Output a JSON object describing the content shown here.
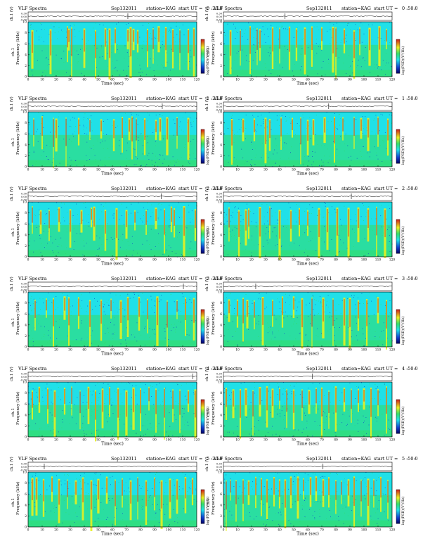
{
  "header_texts": {
    "title": "VLF Spectra",
    "date": "Sep132011",
    "station": "station=KAG",
    "start_prefix": "start  UT ="
  },
  "axis_labels": {
    "ch_label": "ch.1 (V)",
    "ylabel": "ch.1\nFrequency  (kHz)",
    "xlabel": "Time  (sec)",
    "colorbar_label": "log(PSD)(V²/Hz)"
  },
  "colors": {
    "background_cyan": "#20e0e8",
    "background_green": "#33dd66",
    "mid_yellow": "#e8f020",
    "hot_red": "#d01818",
    "low_blue": "#1040d0"
  },
  "chart_data": [
    {
      "type": "heatmap",
      "panel": "0:20",
      "start_ut": "0 :20:0",
      "x": [
        0,
        120
      ],
      "xticks": [
        0,
        10,
        20,
        30,
        40,
        50,
        60,
        70,
        80,
        90,
        100,
        110,
        120
      ],
      "ylim_khz": [
        0,
        10
      ],
      "yticks": [
        0,
        2,
        4,
        6,
        8,
        10
      ],
      "ch_yticks": [
        "0.30",
        "0.00",
        "-0.30"
      ],
      "bursts_sec": [
        3,
        16,
        28,
        29,
        31,
        40,
        48,
        55,
        58,
        62,
        71,
        73,
        75,
        78,
        85,
        89,
        93,
        98,
        103,
        108,
        114,
        118
      ]
    },
    {
      "type": "heatmap",
      "panel": "0:50",
      "start_ut": "0 :50:0",
      "x": [
        0,
        120
      ],
      "xticks": [
        0,
        10,
        20,
        30,
        40,
        50,
        60,
        70,
        80,
        90,
        100,
        110,
        120
      ],
      "ylim_khz": [
        0,
        10
      ],
      "yticks": [
        0,
        2,
        4,
        6,
        8,
        10
      ],
      "ch_yticks": [
        "0.30",
        "0.00",
        "-0.30"
      ],
      "bursts_sec": [
        5,
        12,
        19,
        24,
        26,
        35,
        40,
        47,
        52,
        58,
        63,
        70,
        78,
        80,
        86,
        93,
        97,
        104,
        111,
        116
      ]
    },
    {
      "type": "heatmap",
      "panel": "1:20",
      "start_ut": "1 :20:0",
      "x": [
        0,
        120
      ],
      "xticks": [
        0,
        10,
        20,
        30,
        40,
        50,
        60,
        70,
        80,
        90,
        100,
        110,
        120
      ],
      "ylim_khz": [
        0,
        10
      ],
      "yticks": [
        0,
        2,
        4,
        6,
        8,
        10
      ],
      "ch_yticks": [
        "0.30",
        "0.00",
        "-0.30"
      ],
      "bursts_sec": [
        4,
        10,
        18,
        20,
        27,
        36,
        44,
        52,
        61,
        67,
        72,
        74,
        77,
        83,
        91,
        94,
        99,
        106,
        114
      ]
    },
    {
      "type": "heatmap",
      "panel": "1:50",
      "start_ut": "1 :50:0",
      "x": [
        0,
        120
      ],
      "xticks": [
        0,
        10,
        20,
        30,
        40,
        50,
        60,
        70,
        80,
        90,
        100,
        110,
        120
      ],
      "ylim_khz": [
        0,
        10
      ],
      "yticks": [
        0,
        2,
        4,
        6,
        8,
        10
      ],
      "ch_yticks": [
        "0.30",
        "0.00",
        "-0.30"
      ],
      "bursts_sec": [
        6,
        14,
        22,
        30,
        33,
        41,
        49,
        55,
        60,
        64,
        72,
        79,
        85,
        93,
        98,
        103,
        110,
        117
      ]
    },
    {
      "type": "heatmap",
      "panel": "2:20",
      "start_ut": "2 :20:0",
      "x": [
        0,
        120
      ],
      "xticks": [
        0,
        10,
        20,
        30,
        40,
        50,
        60,
        70,
        80,
        90,
        100,
        110,
        120
      ],
      "ylim_khz": [
        0,
        10
      ],
      "yticks": [
        0,
        2,
        4,
        6,
        8,
        10
      ],
      "ch_yticks": [
        "0.30",
        "0.00",
        "-0.30"
      ],
      "bursts_sec": [
        3,
        9,
        15,
        22,
        30,
        38,
        45,
        47,
        55,
        63,
        70,
        76,
        84,
        91,
        97,
        102,
        104,
        111,
        119
      ]
    },
    {
      "type": "heatmap",
      "panel": "2:50",
      "start_ut": "2 :50:0",
      "x": [
        0,
        120
      ],
      "xticks": [
        0,
        10,
        20,
        30,
        40,
        50,
        60,
        70,
        80,
        90,
        100,
        110,
        120
      ],
      "ylim_khz": [
        0,
        10
      ],
      "yticks": [
        0,
        2,
        4,
        6,
        8,
        10
      ],
      "ch_yticks": [
        "0.30",
        "0.00",
        "-0.30"
      ],
      "bursts_sec": [
        4,
        11,
        16,
        18,
        26,
        33,
        40,
        48,
        54,
        60,
        68,
        74,
        81,
        89,
        96,
        103,
        109,
        115
      ]
    },
    {
      "type": "heatmap",
      "panel": "3:20",
      "start_ut": "3 :20:0",
      "x": [
        0,
        120
      ],
      "xticks": [
        0,
        10,
        20,
        30,
        40,
        50,
        60,
        70,
        80,
        90,
        100,
        110,
        120
      ],
      "ylim_khz": [
        0,
        10
      ],
      "yticks": [
        0,
        2,
        4,
        6,
        8,
        10
      ],
      "ch_yticks": [
        "0.30",
        "0.00",
        "-0.30"
      ],
      "bursts_sec": [
        5,
        13,
        18,
        26,
        29,
        36,
        44,
        52,
        59,
        66,
        71,
        79,
        85,
        92,
        99,
        106,
        112,
        118
      ]
    },
    {
      "type": "heatmap",
      "panel": "3:50",
      "start_ut": "3 :50:0",
      "x": [
        0,
        120
      ],
      "xticks": [
        0,
        10,
        20,
        30,
        40,
        50,
        60,
        70,
        80,
        90,
        100,
        110,
        120
      ],
      "ylim_khz": [
        0,
        10
      ],
      "yticks": [
        0,
        2,
        4,
        6,
        8,
        10
      ],
      "ch_yticks": [
        "0.30",
        "0.00",
        "-0.30"
      ],
      "bursts_sec": [
        4,
        10,
        14,
        17,
        22,
        28,
        35,
        42,
        50,
        56,
        63,
        71,
        78,
        86,
        90,
        96,
        102,
        110,
        116
      ]
    },
    {
      "type": "heatmap",
      "panel": "4:20",
      "start_ut": "4 :20:0",
      "x": [
        0,
        120
      ],
      "xticks": [
        0,
        10,
        20,
        30,
        40,
        50,
        60,
        70,
        80,
        90,
        100,
        110,
        120
      ],
      "ylim_khz": [
        0,
        10
      ],
      "yticks": [
        0,
        2,
        4,
        6,
        8,
        10
      ],
      "ch_yticks": [
        "0.30",
        "0.00",
        "-0.30"
      ],
      "bursts_sec": [
        3,
        8,
        14,
        19,
        26,
        31,
        37,
        43,
        48,
        53,
        58,
        64,
        70,
        75,
        80,
        86,
        91,
        97,
        103,
        108,
        114,
        119
      ]
    },
    {
      "type": "heatmap",
      "panel": "4:50",
      "start_ut": "4 :50:0",
      "x": [
        0,
        120
      ],
      "xticks": [
        0,
        10,
        20,
        30,
        40,
        50,
        60,
        70,
        80,
        90,
        100,
        110,
        120
      ],
      "ylim_khz": [
        0,
        10
      ],
      "yticks": [
        0,
        2,
        4,
        6,
        8,
        10
      ],
      "ch_yticks": [
        "0.30",
        "0.00",
        "-0.30"
      ],
      "bursts_sec": [
        2,
        7,
        12,
        16,
        21,
        26,
        31,
        35,
        40,
        45,
        50,
        56,
        61,
        66,
        70,
        75,
        80,
        86,
        91,
        96,
        100,
        105,
        110,
        116
      ]
    },
    {
      "type": "heatmap",
      "panel": "5:20",
      "start_ut": "5 :20:0",
      "x": [
        0,
        120
      ],
      "xticks": [
        0,
        10,
        20,
        30,
        40,
        50,
        60,
        70,
        80,
        90,
        100,
        110,
        120
      ],
      "ylim_khz": [
        0,
        10
      ],
      "yticks": [
        0,
        2,
        4,
        6,
        8,
        10
      ],
      "ch_yticks": [
        "0.30",
        "0.00",
        "-0.30"
      ],
      "bursts_sec": [
        3,
        6,
        11,
        17,
        22,
        28,
        34,
        39,
        45,
        50,
        56,
        62,
        67,
        73,
        78,
        84,
        90,
        95,
        101,
        106,
        112,
        117
      ]
    },
    {
      "type": "heatmap",
      "panel": "5:50",
      "start_ut": "5 :50:0",
      "x": [
        0,
        120
      ],
      "xticks": [
        0,
        10,
        20,
        30,
        40,
        50,
        60,
        70,
        80,
        90,
        100,
        110,
        120
      ],
      "ylim_khz": [
        0,
        10
      ],
      "yticks": [
        0,
        2,
        4,
        6,
        8,
        10
      ],
      "ch_yticks": [
        "0.30",
        "0.00",
        "-0.30"
      ],
      "bursts_sec": [
        2,
        5,
        9,
        14,
        18,
        23,
        27,
        31,
        36,
        40,
        44,
        48,
        53,
        57,
        62,
        66,
        71,
        75,
        80,
        84,
        89,
        93,
        98,
        103,
        107,
        112,
        117
      ]
    }
  ]
}
